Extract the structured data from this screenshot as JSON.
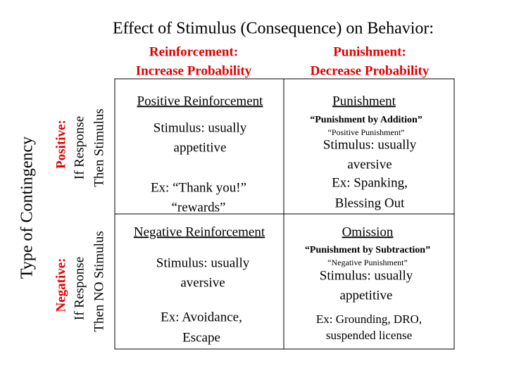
{
  "title": "Effect of Stimulus (Consequence) on Behavior:",
  "columns": [
    {
      "header": "Reinforcement:",
      "subheader": "Increase Probability"
    },
    {
      "header": "Punishment:",
      "subheader": "Decrease Probability"
    }
  ],
  "row_axis_label": "Type of Contingency",
  "rows": [
    {
      "label": "Positive:",
      "lines": [
        "If Response",
        "Then Stimulus"
      ]
    },
    {
      "label": "Negative:",
      "lines": [
        "If Response",
        "Then NO Stimulus"
      ]
    }
  ],
  "cells": [
    [
      {
        "title": "Positive Reinforcement",
        "stimulus": [
          "Stimulus: usually",
          "appetitive"
        ],
        "example": [
          "Ex: “Thank you!”",
          "“rewards”"
        ]
      },
      {
        "title": "Punishment",
        "alias": "“Punishment by Addition”",
        "note": "“Positive Punishment”",
        "stimulus": [
          "Stimulus: usually",
          "aversive"
        ],
        "example": [
          "Ex: Spanking,",
          "Blessing Out"
        ]
      }
    ],
    [
      {
        "title": "Negative Reinforcement",
        "stimulus": [
          "Stimulus: usually",
          "aversive"
        ],
        "example": [
          "Ex: Avoidance,",
          "Escape"
        ]
      },
      {
        "title": "Omission",
        "alias": "“Punishment by Subtraction”",
        "note": "“Negative Punishment”",
        "stimulus": [
          "Stimulus: usually",
          "appetitive"
        ],
        "example": [
          "Ex: Grounding, DRO,",
          "suspended license"
        ]
      }
    ]
  ]
}
